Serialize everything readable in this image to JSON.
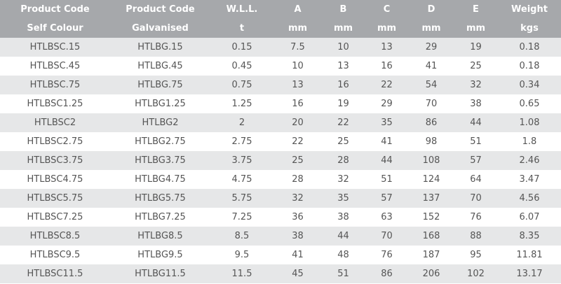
{
  "table": {
    "header": [
      [
        "Product Code",
        "Product Code",
        "W.L.L.",
        "A",
        "B",
        "C",
        "D",
        "E",
        "Weight"
      ],
      [
        "Self Colour",
        "Galvanised",
        "t",
        "mm",
        "mm",
        "mm",
        "mm",
        "mm",
        "kgs"
      ]
    ],
    "rows": [
      [
        "HTLBSC.15",
        "HTLBG.15",
        "0.15",
        "7.5",
        "10",
        "13",
        "29",
        "19",
        "0.18"
      ],
      [
        "HTLBSC.45",
        "HTLBG.45",
        "0.45",
        "10",
        "13",
        "16",
        "41",
        "25",
        "0.18"
      ],
      [
        "HTLBSC.75",
        "HTLBG.75",
        "0.75",
        "13",
        "16",
        "22",
        "54",
        "32",
        "0.34"
      ],
      [
        "HTLBSC1.25",
        "HTLBG1.25",
        "1.25",
        "16",
        "19",
        "29",
        "70",
        "38",
        "0.65"
      ],
      [
        "HTLBSC2",
        "HTLBG2",
        "2",
        "20",
        "22",
        "35",
        "86",
        "44",
        "1.08"
      ],
      [
        "HTLBSC2.75",
        "HTLBG2.75",
        "2.75",
        "22",
        "25",
        "41",
        "98",
        "51",
        "1.8"
      ],
      [
        "HTLBSC3.75",
        "HTLBG3.75",
        "3.75",
        "25",
        "28",
        "44",
        "108",
        "57",
        "2.46"
      ],
      [
        "HTLBSC4.75",
        "HTLBG4.75",
        "4.75",
        "28",
        "32",
        "51",
        "124",
        "64",
        "3.47"
      ],
      [
        "HTLBSC5.75",
        "HTLBG5.75",
        "5.75",
        "32",
        "35",
        "57",
        "137",
        "70",
        "4.56"
      ],
      [
        "HTLBSC7.25",
        "HTLBG7.25",
        "7.25",
        "36",
        "38",
        "63",
        "152",
        "76",
        "6.07"
      ],
      [
        "HTLBSC8.5",
        "HTLBG8.5",
        "8.5",
        "38",
        "44",
        "70",
        "168",
        "88",
        "8.35"
      ],
      [
        "HTLBSC9.5",
        "HTLBG9.5",
        "9.5",
        "41",
        "48",
        "76",
        "187",
        "95",
        "11.81"
      ],
      [
        "HTLBSC11.5",
        "HTLBG11.5",
        "11.5",
        "45",
        "51",
        "86",
        "206",
        "102",
        "13.17"
      ]
    ]
  }
}
